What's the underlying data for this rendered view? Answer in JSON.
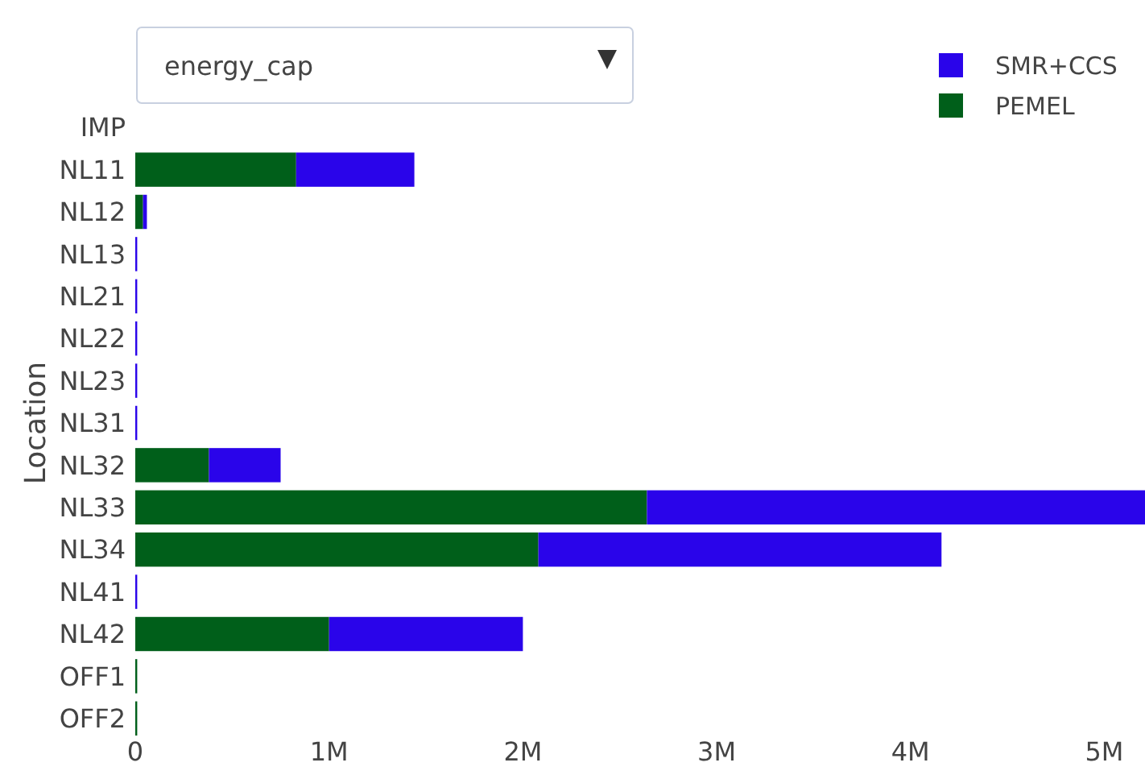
{
  "chart_data": {
    "type": "bar",
    "orientation": "horizontal",
    "stacked": true,
    "ylabel": "Location",
    "categories": [
      "IMP",
      "NL11",
      "NL12",
      "NL13",
      "NL21",
      "NL22",
      "NL23",
      "NL31",
      "NL32",
      "NL33",
      "NL34",
      "NL41",
      "NL42",
      "OFF1",
      "OFF2"
    ],
    "series": [
      {
        "name": "PEMEL",
        "color": "#005f1a",
        "values": [
          0,
          830000,
          40000,
          0,
          0,
          0,
          0,
          0,
          380000,
          2640000,
          2080000,
          0,
          1000000,
          10000,
          10000
        ]
      },
      {
        "name": "SMR+CCS",
        "color": "#2a04ea",
        "values": [
          0,
          610000,
          20000,
          10000,
          10000,
          10000,
          10000,
          10000,
          370000,
          2570000,
          2080000,
          10000,
          1000000,
          0,
          0
        ]
      }
    ],
    "xlim": [
      0,
      5210000
    ],
    "xticks": [
      {
        "value": 0,
        "label": "0"
      },
      {
        "value": 1000000,
        "label": "1M"
      },
      {
        "value": 2000000,
        "label": "2M"
      },
      {
        "value": 3000000,
        "label": "3M"
      },
      {
        "value": 4000000,
        "label": "4M"
      },
      {
        "value": 5000000,
        "label": "5M"
      }
    ],
    "legend": "top right",
    "grid": false,
    "annotations": [
      "energy_cap"
    ]
  }
}
